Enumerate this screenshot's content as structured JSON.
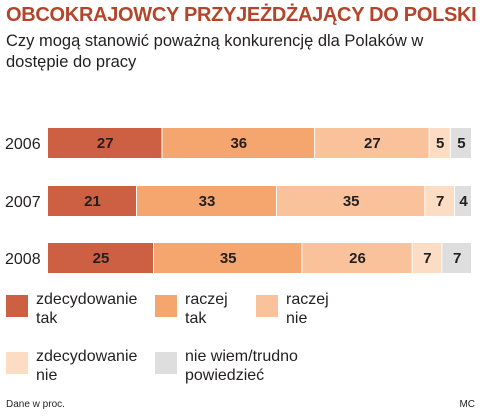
{
  "header": {
    "title": "OBCOKRAJOWCY PRZYJEŻDŻAJĄCY DO POLSKI",
    "subtitle": "Czy mogą stanowić poważną konkurencję dla Polaków w dostępie do pracy"
  },
  "footer": {
    "note": "Dane w proc.",
    "credit": "MC"
  },
  "colors": {
    "title": "#b5452a",
    "zdecydowanie_tak": "#cd5f43",
    "raczej_tak": "#f5a56e",
    "raczej_nie": "#f9c29b",
    "zdecydowanie_nie": "#fcdcc2",
    "nie_wiem": "#dedede"
  },
  "legend": [
    {
      "key": "zdecydowanie_tak",
      "line1": "zdecydowanie",
      "line2": "tak",
      "color": "#cd5f43"
    },
    {
      "key": "raczej_tak",
      "line1": "raczej",
      "line2": "tak",
      "color": "#f5a56e"
    },
    {
      "key": "raczej_nie",
      "line1": "raczej",
      "line2": "nie",
      "color": "#f9c29b"
    },
    {
      "key": "zdecydowanie_nie",
      "line1": "zdecydowanie",
      "line2": "nie",
      "color": "#fcdcc2"
    },
    {
      "key": "nie_wiem",
      "line1": "nie wiem/trudno",
      "line2": "powiedzieć",
      "color": "#dedede"
    }
  ],
  "chart_data": {
    "type": "bar",
    "orientation": "horizontal",
    "stacked": true,
    "categories": [
      "2006",
      "2007",
      "2008"
    ],
    "series": [
      {
        "name": "zdecydowanie tak",
        "color": "#cd5f43",
        "values": [
          27,
          21,
          25
        ]
      },
      {
        "name": "raczej tak",
        "color": "#f5a56e",
        "values": [
          36,
          33,
          35
        ]
      },
      {
        "name": "raczej nie",
        "color": "#f9c29b",
        "values": [
          27,
          35,
          26
        ]
      },
      {
        "name": "zdecydowanie nie",
        "color": "#fcdcc2",
        "values": [
          5,
          7,
          7
        ]
      },
      {
        "name": "nie wiem/trudno powiedzieć",
        "color": "#dedede",
        "values": [
          5,
          4,
          7
        ]
      }
    ],
    "title": "OBCOKRAJOWCY PRZYJEŻDŻAJĄCY DO POLSKI",
    "xlabel": "",
    "ylabel": "",
    "xlim": [
      0,
      100
    ],
    "grid": false,
    "legend_position": "bottom"
  }
}
